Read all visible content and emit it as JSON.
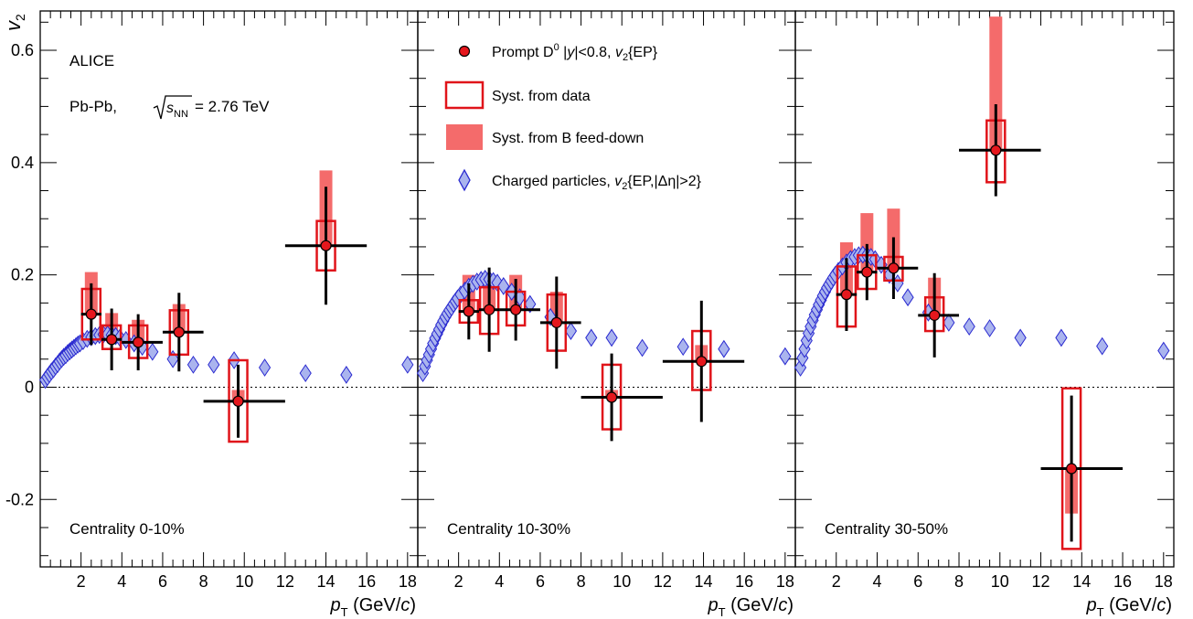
{
  "chart_data": {
    "type": "scatter",
    "experiment": "ALICE",
    "system_label": "Pb-Pb,",
    "energy_label": "= 2.76 TeV",
    "energy_symbol": "s",
    "energy_symbol_sub": "NN",
    "ylabel": "v",
    "ylabel_sub": "2",
    "xlabel_p": "p",
    "xlabel_sub": "T",
    "xlabel_unit_pre": " (GeV/",
    "xlabel_unit_c": "c",
    "xlabel_unit_post": ")",
    "ylim": [
      -0.32,
      0.67
    ],
    "xlim": [
      0,
      18.5
    ],
    "y_ticks": [
      -0.2,
      0,
      0.2,
      0.4,
      0.6
    ],
    "y_tick_labels": [
      "-0.2",
      "0",
      "0.2",
      "0.4",
      "0.6"
    ],
    "x_ticks": [
      2,
      4,
      6,
      8,
      10,
      12,
      14,
      16,
      18
    ],
    "x_tick_labels": [
      "2",
      "4",
      "6",
      "8",
      "10",
      "12",
      "14",
      "16",
      "18"
    ],
    "zero_line": true,
    "grid": false,
    "legend": {
      "position": "top-center",
      "entries": [
        {
          "type": "marker",
          "text": "Prompt D⁰ |y|<0.8, v₂{EP}"
        },
        {
          "type": "box",
          "text": "Syst. from data"
        },
        {
          "type": "fill",
          "text": "Syst. from B feed-down"
        },
        {
          "type": "diamond",
          "text": "Charged particles, v₂{EP,|Δη|>2}"
        }
      ]
    },
    "colors": {
      "d_marker": "#e5171d",
      "syst_box": "#e0141a",
      "feeddown_fill": "#f46b6b",
      "charged_fill": "#aab4ee",
      "charged_edge": "#2a2ad0"
    },
    "panels": [
      {
        "centrality": "Centrality 0-10%",
        "d_mesons": [
          {
            "x": 2.5,
            "y": 0.13,
            "xerr": [
              0.5,
              0.5
            ],
            "stat": 0.055,
            "syst_data": [
              0.085,
              0.175
            ],
            "syst_feeddown": [
              0.13,
              0.205
            ]
          },
          {
            "x": 3.5,
            "y": 0.085,
            "xerr": [
              0.5,
              0.5
            ],
            "stat": 0.055,
            "syst_data": [
              0.068,
              0.11
            ],
            "syst_feeddown": [
              0.085,
              0.132
            ]
          },
          {
            "x": 4.8,
            "y": 0.08,
            "xerr": [
              0.8,
              1.2
            ],
            "stat": 0.05,
            "syst_data": [
              0.052,
              0.11
            ],
            "syst_feeddown": [
              0.08,
              0.12
            ]
          },
          {
            "x": 6.8,
            "y": 0.098,
            "xerr": [
              0.8,
              1.2
            ],
            "stat": 0.07,
            "syst_data": [
              0.058,
              0.137
            ],
            "syst_feeddown": [
              0.098,
              0.148
            ]
          },
          {
            "x": 9.7,
            "y": -0.025,
            "xerr": [
              1.7,
              2.3
            ],
            "stat": 0.065,
            "syst_data": [
              -0.097,
              0.048
            ],
            "syst_feeddown": [
              -0.025,
              -0.005
            ]
          },
          {
            "x": 14.0,
            "y": 0.252,
            "xerr": [
              2.0,
              2.0
            ],
            "stat": 0.105,
            "syst_data": [
              0.208,
              0.296
            ],
            "syst_feeddown": [
              0.252,
              0.386
            ]
          }
        ],
        "charged": {
          "x": [
            0.25,
            0.35,
            0.45,
            0.55,
            0.65,
            0.75,
            0.85,
            0.95,
            1.05,
            1.15,
            1.25,
            1.35,
            1.45,
            1.55,
            1.65,
            1.75,
            1.85,
            1.95,
            2.1,
            2.3,
            2.5,
            2.7,
            2.9,
            3.1,
            3.3,
            3.5,
            3.7,
            3.9,
            4.2,
            4.6,
            5.0,
            5.5,
            6.5,
            7.5,
            8.5,
            9.5,
            11.0,
            13.0,
            15.0,
            18.0
          ],
          "y": [
            0.013,
            0.018,
            0.023,
            0.028,
            0.032,
            0.037,
            0.041,
            0.046,
            0.05,
            0.054,
            0.057,
            0.061,
            0.064,
            0.067,
            0.07,
            0.073,
            0.076,
            0.078,
            0.082,
            0.086,
            0.089,
            0.091,
            0.093,
            0.094,
            0.094,
            0.093,
            0.091,
            0.088,
            0.084,
            0.078,
            0.072,
            0.063,
            0.05,
            0.04,
            0.04,
            0.048,
            0.035,
            0.025,
            0.022,
            0.04
          ]
        }
      },
      {
        "centrality": "Centrality 10-30%",
        "d_mesons": [
          {
            "x": 2.5,
            "y": 0.135,
            "xerr": [
              0.5,
              0.5
            ],
            "stat": 0.05,
            "syst_data": [
              0.115,
              0.155
            ],
            "syst_feeddown": [
              0.135,
              0.2
            ]
          },
          {
            "x": 3.5,
            "y": 0.138,
            "xerr": [
              0.5,
              0.5
            ],
            "stat": 0.075,
            "syst_data": [
              0.095,
              0.178
            ],
            "syst_feeddown": [
              0.138,
              0.19
            ]
          },
          {
            "x": 4.8,
            "y": 0.138,
            "xerr": [
              0.8,
              1.2
            ],
            "stat": 0.055,
            "syst_data": [
              0.11,
              0.17
            ],
            "syst_feeddown": [
              0.138,
              0.2
            ]
          },
          {
            "x": 6.8,
            "y": 0.115,
            "xerr": [
              0.8,
              1.2
            ],
            "stat": 0.082,
            "syst_data": [
              0.065,
              0.165
            ],
            "syst_feeddown": [
              0.115,
              0.17
            ]
          },
          {
            "x": 9.5,
            "y": -0.018,
            "xerr": [
              1.5,
              2.5
            ],
            "stat": 0.078,
            "syst_data": [
              -0.075,
              0.04
            ],
            "syst_feeddown": [
              -0.018,
              -0.005
            ]
          },
          {
            "x": 13.9,
            "y": 0.046,
            "xerr": [
              1.9,
              2.1
            ],
            "stat": 0.108,
            "syst_data": [
              -0.005,
              0.1
            ],
            "syst_feeddown": [
              0.046,
              0.075
            ]
          }
        ],
        "charged": {
          "x": [
            0.25,
            0.35,
            0.45,
            0.55,
            0.65,
            0.75,
            0.85,
            0.95,
            1.05,
            1.15,
            1.25,
            1.35,
            1.45,
            1.55,
            1.65,
            1.75,
            1.85,
            1.95,
            2.1,
            2.3,
            2.5,
            2.7,
            2.9,
            3.1,
            3.3,
            3.5,
            3.7,
            3.9,
            4.2,
            4.6,
            5.0,
            5.5,
            6.5,
            7.5,
            8.5,
            9.5,
            11.0,
            13.0,
            15.0,
            18.0
          ],
          "y": [
            0.025,
            0.037,
            0.048,
            0.058,
            0.068,
            0.078,
            0.087,
            0.095,
            0.103,
            0.111,
            0.118,
            0.125,
            0.131,
            0.137,
            0.142,
            0.148,
            0.153,
            0.158,
            0.165,
            0.172,
            0.179,
            0.184,
            0.188,
            0.191,
            0.193,
            0.192,
            0.189,
            0.186,
            0.18,
            0.17,
            0.16,
            0.148,
            0.125,
            0.1,
            0.088,
            0.088,
            0.07,
            0.072,
            0.068,
            0.055
          ]
        }
      },
      {
        "centrality": "Centrality 30-50%",
        "d_mesons": [
          {
            "x": 2.5,
            "y": 0.165,
            "xerr": [
              0.5,
              0.5
            ],
            "stat": 0.065,
            "syst_data": [
              0.108,
              0.215
            ],
            "syst_feeddown": [
              0.165,
              0.258
            ]
          },
          {
            "x": 3.5,
            "y": 0.205,
            "xerr": [
              0.5,
              0.5
            ],
            "stat": 0.05,
            "syst_data": [
              0.175,
              0.235
            ],
            "syst_feeddown": [
              0.205,
              0.31
            ]
          },
          {
            "x": 4.8,
            "y": 0.212,
            "xerr": [
              0.8,
              1.2
            ],
            "stat": 0.055,
            "syst_data": [
              0.19,
              0.232
            ],
            "syst_feeddown": [
              0.212,
              0.318
            ]
          },
          {
            "x": 6.8,
            "y": 0.128,
            "xerr": [
              0.8,
              1.2
            ],
            "stat": 0.075,
            "syst_data": [
              0.1,
              0.16
            ],
            "syst_feeddown": [
              0.128,
              0.195
            ]
          },
          {
            "x": 9.8,
            "y": 0.422,
            "xerr": [
              1.8,
              2.2
            ],
            "stat": 0.082,
            "syst_data": [
              0.365,
              0.475
            ],
            "syst_feeddown": [
              0.422,
              0.66
            ]
          },
          {
            "x": 13.5,
            "y": -0.145,
            "xerr": [
              1.5,
              2.5
            ],
            "stat": 0.13,
            "syst_data": [
              -0.288,
              -0.002
            ],
            "syst_feeddown": [
              -0.225,
              -0.145
            ]
          }
        ],
        "charged": {
          "x": [
            0.25,
            0.35,
            0.45,
            0.55,
            0.65,
            0.75,
            0.85,
            0.95,
            1.05,
            1.15,
            1.25,
            1.35,
            1.45,
            1.55,
            1.65,
            1.75,
            1.85,
            1.95,
            2.1,
            2.3,
            2.5,
            2.7,
            2.9,
            3.1,
            3.3,
            3.5,
            3.7,
            3.9,
            4.2,
            4.6,
            5.0,
            5.5,
            6.5,
            7.5,
            8.5,
            9.5,
            11.0,
            13.0,
            15.0,
            18.0
          ],
          "y": [
            0.035,
            0.052,
            0.068,
            0.083,
            0.096,
            0.108,
            0.119,
            0.129,
            0.138,
            0.147,
            0.155,
            0.163,
            0.17,
            0.177,
            0.183,
            0.189,
            0.195,
            0.2,
            0.207,
            0.215,
            0.222,
            0.228,
            0.232,
            0.235,
            0.236,
            0.235,
            0.232,
            0.228,
            0.218,
            0.2,
            0.185,
            0.16,
            0.133,
            0.115,
            0.108,
            0.105,
            0.088,
            0.088,
            0.073,
            0.065
          ]
        }
      }
    ]
  }
}
